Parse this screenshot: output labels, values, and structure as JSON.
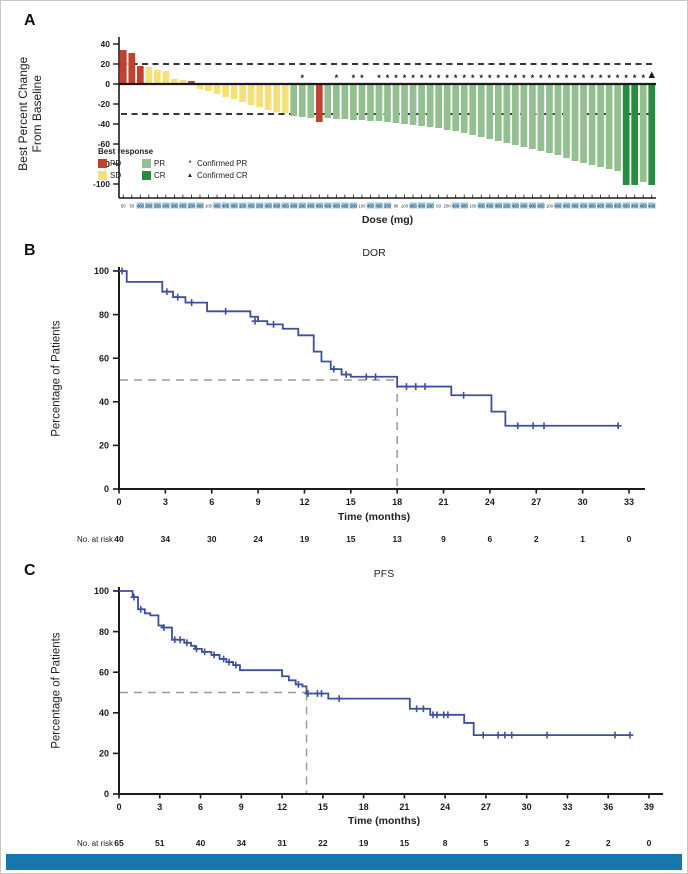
{
  "panels": {
    "a": "A",
    "b": "B",
    "c": "C"
  },
  "colors": {
    "PD": "#c0432f",
    "SD": "#f5e07b",
    "PR": "#94bf90",
    "CR": "#268c3f",
    "curve": "#3d4fa1",
    "median": "#9a9a9a",
    "axis": "#1a1a1a",
    "dose_highlight": "#9dc6e0",
    "band": "#1478ad"
  },
  "chart_data": [
    {
      "type": "bar",
      "panel": "A",
      "ylabel_line1": "Best Percent Change",
      "ylabel_line2": "From Baseline",
      "xlabel": "Dose (mg)",
      "ylim": [
        -100,
        40
      ],
      "yticks": [
        40,
        20,
        0,
        -20,
        -40,
        -60,
        -80,
        -100
      ],
      "reference_lines": [
        20,
        -30
      ],
      "legend": {
        "title": "Best response",
        "items": [
          {
            "label": "PD",
            "color_key": "PD"
          },
          {
            "label": "SD",
            "color_key": "SD"
          },
          {
            "label": "PR",
            "color_key": "PR"
          },
          {
            "label": "CR",
            "color_key": "CR"
          }
        ],
        "markers": [
          {
            "symbol": "*",
            "label": "Confirmed PR"
          },
          {
            "symbol": "▲",
            "label": "Confirmed CR"
          }
        ]
      },
      "bars": [
        [
          34,
          "PD",
          ""
        ],
        [
          31,
          "PD",
          ""
        ],
        [
          18,
          "PD",
          ""
        ],
        [
          17,
          "SD",
          ""
        ],
        [
          14,
          "SD",
          ""
        ],
        [
          13,
          "SD",
          ""
        ],
        [
          5,
          "SD",
          ""
        ],
        [
          4,
          "SD",
          ""
        ],
        [
          3,
          "PD",
          ""
        ],
        [
          -4,
          "SD",
          ""
        ],
        [
          -6,
          "SD",
          ""
        ],
        [
          -9,
          "SD",
          ""
        ],
        [
          -12,
          "SD",
          ""
        ],
        [
          -14,
          "SD",
          ""
        ],
        [
          -17,
          "SD",
          ""
        ],
        [
          -20,
          "SD",
          ""
        ],
        [
          -22,
          "SD",
          ""
        ],
        [
          -25,
          "SD",
          ""
        ],
        [
          -27,
          "SD",
          ""
        ],
        [
          -28,
          "SD",
          ""
        ],
        [
          -31,
          "PR",
          ""
        ],
        [
          -32,
          "PR",
          "*"
        ],
        [
          -33,
          "PR",
          ""
        ],
        [
          -37,
          "PD",
          ""
        ],
        [
          -33,
          "PR",
          ""
        ],
        [
          -34,
          "PR",
          "*"
        ],
        [
          -34,
          "PR",
          ""
        ],
        [
          -35,
          "PR",
          "*"
        ],
        [
          -35,
          "PR",
          "*"
        ],
        [
          -36,
          "PR",
          ""
        ],
        [
          -36,
          "PR",
          "*"
        ],
        [
          -37,
          "PR",
          "*"
        ],
        [
          -38,
          "PR",
          "*"
        ],
        [
          -39,
          "PR",
          "*"
        ],
        [
          -40,
          "PR",
          "*"
        ],
        [
          -41,
          "PR",
          "*"
        ],
        [
          -42,
          "PR",
          "*"
        ],
        [
          -43,
          "PR",
          "*"
        ],
        [
          -45,
          "PR",
          "*"
        ],
        [
          -46,
          "PR",
          "*"
        ],
        [
          -48,
          "PR",
          "*"
        ],
        [
          -50,
          "PR",
          "*"
        ],
        [
          -52,
          "PR",
          "*"
        ],
        [
          -54,
          "PR",
          "*"
        ],
        [
          -56,
          "PR",
          "*"
        ],
        [
          -58,
          "PR",
          "*"
        ],
        [
          -60,
          "PR",
          "*"
        ],
        [
          -62,
          "PR",
          "*"
        ],
        [
          -64,
          "PR",
          "*"
        ],
        [
          -66,
          "PR",
          "*"
        ],
        [
          -68,
          "PR",
          "*"
        ],
        [
          -70,
          "PR",
          "*"
        ],
        [
          -73,
          "PR",
          "*"
        ],
        [
          -76,
          "PR",
          "*"
        ],
        [
          -78,
          "PR",
          "*"
        ],
        [
          -80,
          "PR",
          "*"
        ],
        [
          -82,
          "PR",
          "*"
        ],
        [
          -84,
          "PR",
          "*"
        ],
        [
          -86,
          "PR",
          "*"
        ],
        [
          -100,
          "CR",
          "*"
        ],
        [
          -100,
          "CR",
          "*"
        ],
        [
          -97,
          "PR",
          "*"
        ],
        [
          -100,
          "CR",
          "t"
        ]
      ],
      "doses": [
        [
          "50",
          0
        ],
        [
          "50",
          0
        ],
        [
          "400",
          1
        ],
        [
          "200",
          1
        ],
        [
          "200",
          1
        ],
        [
          "400",
          1
        ],
        [
          "300",
          1
        ],
        [
          "400",
          1
        ],
        [
          "200",
          1
        ],
        [
          "400",
          1
        ],
        [
          "100",
          0
        ],
        [
          "400",
          1
        ],
        [
          "400",
          1
        ],
        [
          "400",
          1
        ],
        [
          "100",
          1
        ],
        [
          "400",
          1
        ],
        [
          "200",
          1
        ],
        [
          "400",
          1
        ],
        [
          "400",
          1
        ],
        [
          "400",
          1
        ],
        [
          "400",
          1
        ],
        [
          "200",
          1
        ],
        [
          "400",
          1
        ],
        [
          "400",
          1
        ],
        [
          "400",
          1
        ],
        [
          "400",
          1
        ],
        [
          "400",
          1
        ],
        [
          "200",
          1
        ],
        [
          "100",
          0
        ],
        [
          "400",
          1
        ],
        [
          "400",
          1
        ],
        [
          "200",
          1
        ],
        [
          "80",
          0
        ],
        [
          "100",
          0
        ],
        [
          "400",
          1
        ],
        [
          "400",
          1
        ],
        [
          "200",
          1
        ],
        [
          "50",
          0
        ],
        [
          "200",
          0
        ],
        [
          "400",
          1
        ],
        [
          "400",
          1
        ],
        [
          "100",
          0
        ],
        [
          "400",
          1
        ],
        [
          "400",
          1
        ],
        [
          "400",
          1
        ],
        [
          "200",
          1
        ],
        [
          "400",
          1
        ],
        [
          "400",
          1
        ],
        [
          "400",
          1
        ],
        [
          "400",
          1
        ],
        [
          "100",
          0
        ],
        [
          "400",
          1
        ],
        [
          "400",
          1
        ],
        [
          "400",
          1
        ],
        [
          "400",
          1
        ],
        [
          "400",
          1
        ],
        [
          "400",
          1
        ],
        [
          "400",
          1
        ],
        [
          "400",
          1
        ],
        [
          "400",
          1
        ],
        [
          "400",
          1
        ],
        [
          "400",
          1
        ],
        [
          "400",
          1
        ]
      ]
    },
    {
      "type": "line",
      "panel": "B",
      "title": "DOR",
      "ylabel": "Percentage of Patients",
      "xlabel": "Time (months)",
      "xlim": [
        0,
        33
      ],
      "ylim": [
        0,
        100
      ],
      "xticks": [
        0,
        3,
        6,
        9,
        12,
        15,
        18,
        21,
        24,
        27,
        30,
        33
      ],
      "yticks": [
        0,
        20,
        40,
        60,
        80,
        100
      ],
      "median_x": 18,
      "median_y": 50,
      "steps": [
        [
          0,
          100
        ],
        [
          0.5,
          95
        ],
        [
          2.8,
          90.5
        ],
        [
          3.5,
          88
        ],
        [
          4.3,
          85.5
        ],
        [
          5.7,
          81.5
        ],
        [
          8.5,
          79
        ],
        [
          9.0,
          77
        ],
        [
          9.6,
          75.5
        ],
        [
          10.6,
          73.5
        ],
        [
          11.6,
          70.5
        ],
        [
          12.6,
          63
        ],
        [
          13.1,
          58.5
        ],
        [
          13.7,
          55
        ],
        [
          14.4,
          52.5
        ],
        [
          15.0,
          51.5
        ],
        [
          18.0,
          47
        ],
        [
          21.5,
          43
        ],
        [
          24.1,
          35.5
        ],
        [
          25.0,
          29
        ]
      ],
      "end_x": 32.3,
      "censors": [
        [
          0.2,
          100
        ],
        [
          3.1,
          90.5
        ],
        [
          3.8,
          88
        ],
        [
          4.7,
          85.5
        ],
        [
          6.9,
          81.5
        ],
        [
          8.8,
          77
        ],
        [
          10.0,
          75.5
        ],
        [
          13.9,
          55
        ],
        [
          14.7,
          52.5
        ],
        [
          16.0,
          51.5
        ],
        [
          16.6,
          51.5
        ],
        [
          18.6,
          47
        ],
        [
          19.2,
          47
        ],
        [
          19.8,
          47
        ],
        [
          22.3,
          43
        ],
        [
          25.8,
          29
        ],
        [
          26.8,
          29
        ],
        [
          27.5,
          29
        ],
        [
          32.3,
          29
        ]
      ],
      "at_risk_label": "No. at risk",
      "at_risk": [
        40,
        34,
        30,
        24,
        19,
        15,
        13,
        9,
        6,
        2,
        1,
        0
      ]
    },
    {
      "type": "line",
      "panel": "C",
      "title": "PFS",
      "ylabel": "Percentage of Patients",
      "xlabel": "Time (months)",
      "xlim": [
        0,
        39
      ],
      "ylim": [
        0,
        100
      ],
      "xticks": [
        0,
        3,
        6,
        9,
        12,
        15,
        18,
        21,
        24,
        27,
        30,
        33,
        36,
        39
      ],
      "yticks": [
        0,
        20,
        40,
        60,
        80,
        100
      ],
      "median_x": 13.8,
      "median_y": 50,
      "steps": [
        [
          0,
          100
        ],
        [
          1.0,
          97
        ],
        [
          1.4,
          91
        ],
        [
          1.9,
          89
        ],
        [
          2.3,
          88
        ],
        [
          2.9,
          83
        ],
        [
          3.2,
          82
        ],
        [
          3.9,
          76
        ],
        [
          4.8,
          74.5
        ],
        [
          5.3,
          73
        ],
        [
          5.6,
          71.5
        ],
        [
          6.1,
          70
        ],
        [
          6.8,
          68.5
        ],
        [
          7.4,
          66.5
        ],
        [
          7.9,
          65
        ],
        [
          8.4,
          63.5
        ],
        [
          8.9,
          61
        ],
        [
          12.0,
          58
        ],
        [
          12.5,
          56
        ],
        [
          13.0,
          54
        ],
        [
          13.5,
          53
        ],
        [
          13.8,
          49.5
        ],
        [
          15.4,
          47
        ],
        [
          21.4,
          42
        ],
        [
          22.9,
          39
        ],
        [
          25.4,
          35
        ],
        [
          26.1,
          29
        ]
      ],
      "end_x": 37.6,
      "censors": [
        [
          1.1,
          97
        ],
        [
          1.6,
          91
        ],
        [
          3.3,
          82
        ],
        [
          4.1,
          76
        ],
        [
          4.5,
          76
        ],
        [
          5.0,
          74.5
        ],
        [
          5.7,
          71.5
        ],
        [
          6.3,
          70
        ],
        [
          7.0,
          68.5
        ],
        [
          7.7,
          66.5
        ],
        [
          8.1,
          65
        ],
        [
          8.6,
          63.5
        ],
        [
          13.2,
          54
        ],
        [
          13.9,
          49.5
        ],
        [
          14.6,
          49.5
        ],
        [
          14.9,
          49.5
        ],
        [
          16.2,
          47
        ],
        [
          21.9,
          42
        ],
        [
          22.4,
          42
        ],
        [
          23.1,
          39
        ],
        [
          23.4,
          39
        ],
        [
          23.9,
          39
        ],
        [
          24.2,
          39
        ],
        [
          26.8,
          29
        ],
        [
          27.9,
          29
        ],
        [
          28.4,
          29
        ],
        [
          28.9,
          29
        ],
        [
          31.5,
          29
        ],
        [
          36.5,
          29
        ],
        [
          37.6,
          29
        ]
      ],
      "at_risk_label": "No. at risk",
      "at_risk": [
        65,
        51,
        40,
        34,
        31,
        22,
        19,
        15,
        8,
        5,
        3,
        2,
        2,
        0
      ]
    }
  ]
}
